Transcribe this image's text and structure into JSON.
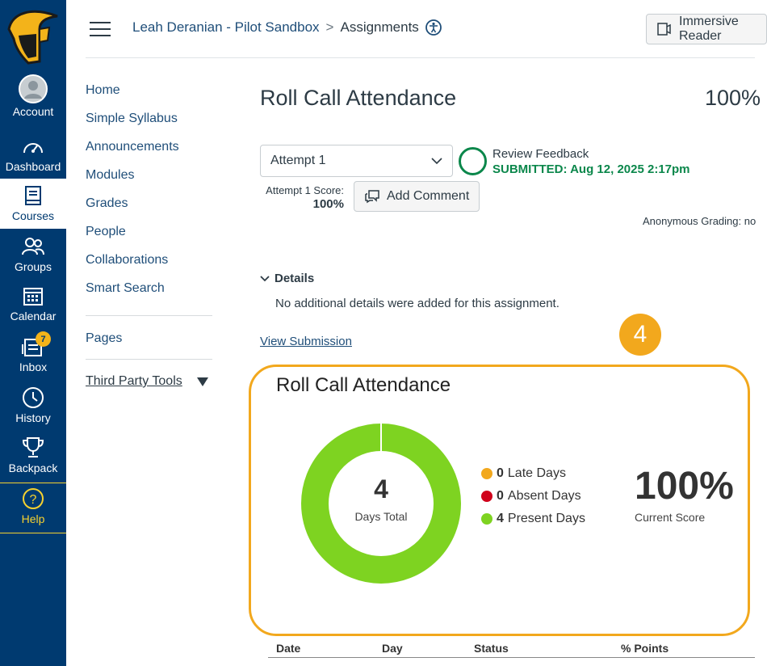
{
  "global_nav": {
    "items": [
      {
        "label": "Account",
        "icon": "avatar-icon"
      },
      {
        "label": "Dashboard",
        "icon": "dashboard-icon"
      },
      {
        "label": "Courses",
        "icon": "courses-icon",
        "active": true
      },
      {
        "label": "Groups",
        "icon": "groups-icon"
      },
      {
        "label": "Calendar",
        "icon": "calendar-icon"
      },
      {
        "label": "Inbox",
        "icon": "inbox-icon",
        "badge": "7"
      },
      {
        "label": "History",
        "icon": "history-icon"
      },
      {
        "label": "Backpack",
        "icon": "trophy-icon"
      },
      {
        "label": "Help",
        "icon": "help-icon"
      }
    ]
  },
  "header": {
    "course_link": "Leah Deranian - Pilot Sandbox",
    "separator": ">",
    "current": "Assignments",
    "immersive_reader": "Immersive Reader"
  },
  "course_nav": {
    "items": [
      "Home",
      "Simple Syllabus",
      "Announcements",
      "Modules",
      "Grades",
      "People",
      "Collaborations",
      "Smart Search"
    ],
    "pages": "Pages",
    "third_party": "Third Party Tools"
  },
  "assignment": {
    "title": "Roll Call Attendance",
    "score": "100%",
    "attempt_select": "Attempt 1",
    "attempt_score_label": "Attempt 1 Score:",
    "attempt_score_value": "100%",
    "add_comment": "Add Comment",
    "review_feedback": "Review Feedback",
    "submitted": "SUBMITTED: Aug 12, 2025 2:17pm",
    "anonymous_grading": "Anonymous Grading: no",
    "details_heading": "Details",
    "details_text": "No additional details were added for this assignment.",
    "view_submission": "View Submission"
  },
  "marker": "4",
  "attendance": {
    "title": "Roll Call Attendance",
    "total": "4",
    "total_label": "Days Total",
    "legend": [
      {
        "count": "0",
        "label": "Late Days",
        "color": "#f2a81d"
      },
      {
        "count": "0",
        "label": "Absent Days",
        "color": "#d0021b"
      },
      {
        "count": "4",
        "label": "Present Days",
        "color": "#7ed321"
      }
    ],
    "current_score": "100%",
    "current_score_label": "Current Score"
  },
  "table": {
    "headers": [
      "Date",
      "Day",
      "Status",
      "% Points"
    ]
  },
  "colors": {
    "nav_bg": "#003a70",
    "accent_gold": "#f2a81d",
    "present_green": "#7ed321",
    "submitted_green": "#0b874b"
  }
}
